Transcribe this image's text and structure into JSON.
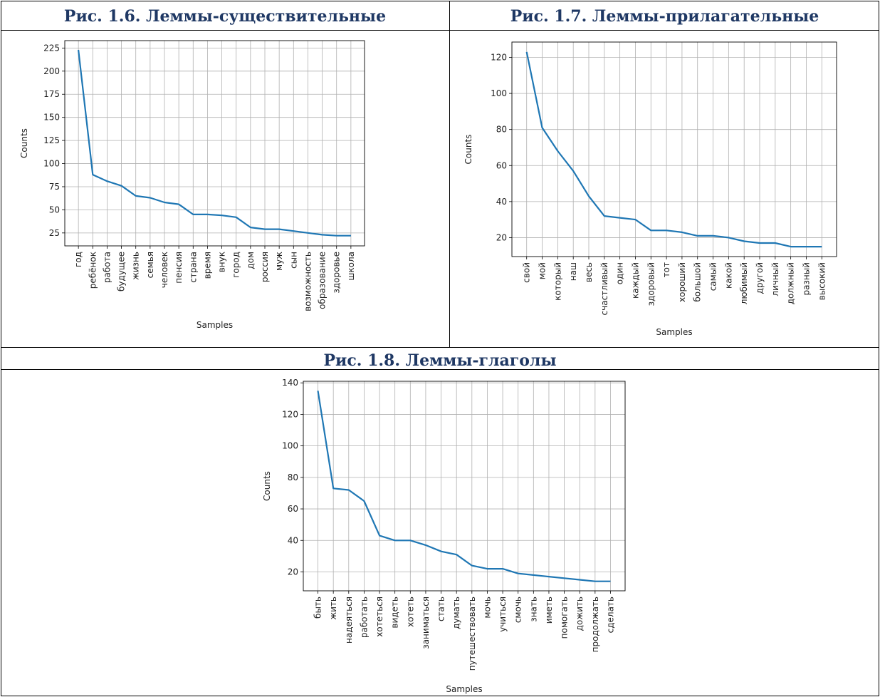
{
  "tables": {
    "fig_1_6_title": "Рис. 1.6. Леммы-существительные",
    "fig_1_7_title": "Рис. 1.7. Леммы-прилагательные",
    "fig_1_8_title": "Рис. 1.8. Леммы-глаголы"
  },
  "chart_data": [
    {
      "type": "line",
      "categories": [
        "год",
        "ребёнок",
        "работа",
        "будущее",
        "жизнь",
        "семья",
        "человек",
        "пенсия",
        "страна",
        "время",
        "внук",
        "город",
        "дом",
        "россия",
        "муж",
        "сын",
        "возможность",
        "образование",
        "здоровье",
        "школа"
      ],
      "values": [
        223,
        88,
        81,
        76,
        65,
        63,
        58,
        56,
        45,
        45,
        44,
        42,
        31,
        29,
        29,
        27,
        25,
        23,
        22,
        22
      ],
      "xlabel": "Samples",
      "ylabel": "Counts",
      "yticks": [
        25,
        50,
        75,
        100,
        125,
        150,
        175,
        200,
        225
      ],
      "ylim": [
        11,
        233
      ],
      "grid": true,
      "color": "#1f77b4"
    },
    {
      "type": "line",
      "categories": [
        "свой",
        "мой",
        "который",
        "наш",
        "весь",
        "счастливый",
        "один",
        "каждый",
        "здоровый",
        "тот",
        "хороший",
        "большой",
        "самый",
        "какой",
        "любимый",
        "другой",
        "личный",
        "должный",
        "разный",
        "высокий"
      ],
      "values": [
        123,
        81,
        68,
        57,
        43,
        32,
        31,
        30,
        24,
        24,
        23,
        21,
        21,
        20,
        18,
        17,
        17,
        15,
        15,
        15
      ],
      "xlabel": "Samples",
      "ylabel": "Counts",
      "yticks": [
        20,
        40,
        60,
        80,
        100,
        120
      ],
      "ylim": [
        9.5,
        128.5
      ],
      "grid": true,
      "color": "#1f77b4"
    },
    {
      "type": "line",
      "categories": [
        "быть",
        "жить",
        "надеяться",
        "работать",
        "хотеться",
        "видеть",
        "хотеть",
        "заниматься",
        "стать",
        "думать",
        "путешествовать",
        "мочь",
        "учиться",
        "смочь",
        "знать",
        "иметь",
        "помогать",
        "дожить",
        "продолжать",
        "сделать"
      ],
      "values": [
        135,
        73,
        72,
        65,
        43,
        40,
        40,
        37,
        33,
        31,
        24,
        22,
        22,
        19,
        18,
        17,
        16,
        15,
        14,
        14
      ],
      "xlabel": "Samples",
      "ylabel": "Counts",
      "yticks": [
        20,
        40,
        60,
        80,
        100,
        120,
        140
      ],
      "ylim": [
        8,
        141
      ],
      "grid": true,
      "color": "#1f77b4"
    }
  ]
}
